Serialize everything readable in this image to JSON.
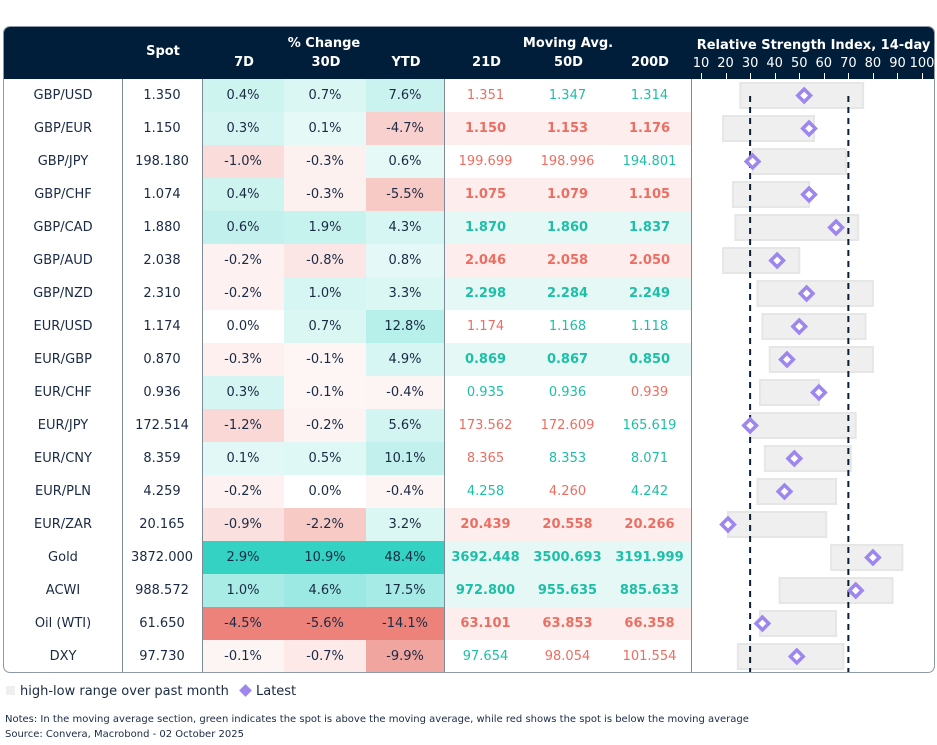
{
  "header": {
    "spot": "Spot",
    "pct_change": "% Change",
    "d7": "7D",
    "d30": "30D",
    "ytd": "YTD",
    "moving_avg": "Moving Avg.",
    "ma21": "21D",
    "ma50": "50D",
    "ma200": "200D",
    "rsi_title": "Relative Strength Index, 14-day",
    "rsi_ticks": [
      "10",
      "20",
      "30",
      "40",
      "50",
      "60",
      "70",
      "80",
      "90",
      "100"
    ]
  },
  "colors": {
    "green": "#1dbfa6",
    "red": "#ec6e62",
    "header_bg": "#001e3a",
    "diamond": "#9d86ee",
    "range": "#efefef"
  },
  "rows": [
    {
      "name": "GBP/USD",
      "spot": "1.350",
      "d7": "0.4%",
      "d30": "0.7%",
      "ytd": "7.6%",
      "ma": [
        "1.351",
        "1.347",
        "1.314"
      ],
      "ma_colors": [
        "red",
        "green",
        "green"
      ],
      "bold": false,
      "rsi": {
        "low": 26,
        "high": 76,
        "latest": 52
      }
    },
    {
      "name": "GBP/EUR",
      "spot": "1.150",
      "d7": "0.3%",
      "d30": "0.1%",
      "ytd": "-4.7%",
      "ma": [
        "1.150",
        "1.153",
        "1.176"
      ],
      "ma_colors": [
        "red",
        "red",
        "red"
      ],
      "bold": true,
      "rsi": {
        "low": 19,
        "high": 56,
        "latest": 54
      }
    },
    {
      "name": "GBP/JPY",
      "spot": "198.180",
      "d7": "-1.0%",
      "d30": "-0.3%",
      "ytd": "0.6%",
      "ma": [
        "199.699",
        "198.996",
        "194.801"
      ],
      "ma_colors": [
        "red",
        "red",
        "green"
      ],
      "bold": false,
      "rsi": {
        "low": 31,
        "high": 69,
        "latest": 31
      }
    },
    {
      "name": "GBP/CHF",
      "spot": "1.074",
      "d7": "0.4%",
      "d30": "-0.3%",
      "ytd": "-5.5%",
      "ma": [
        "1.075",
        "1.079",
        "1.105"
      ],
      "ma_colors": [
        "red",
        "red",
        "red"
      ],
      "bold": true,
      "rsi": {
        "low": 23,
        "high": 54,
        "latest": 54
      }
    },
    {
      "name": "GBP/CAD",
      "spot": "1.880",
      "d7": "0.6%",
      "d30": "1.9%",
      "ytd": "4.3%",
      "ma": [
        "1.870",
        "1.860",
        "1.837"
      ],
      "ma_colors": [
        "green",
        "green",
        "green"
      ],
      "bold": true,
      "rsi": {
        "low": 24,
        "high": 74,
        "latest": 65
      }
    },
    {
      "name": "GBP/AUD",
      "spot": "2.038",
      "d7": "-0.2%",
      "d30": "-0.8%",
      "ytd": "0.8%",
      "ma": [
        "2.046",
        "2.058",
        "2.050"
      ],
      "ma_colors": [
        "red",
        "red",
        "red"
      ],
      "bold": true,
      "rsi": {
        "low": 19,
        "high": 50,
        "latest": 41
      }
    },
    {
      "name": "GBP/NZD",
      "spot": "2.310",
      "d7": "-0.2%",
      "d30": "1.0%",
      "ytd": "3.3%",
      "ma": [
        "2.298",
        "2.284",
        "2.249"
      ],
      "ma_colors": [
        "green",
        "green",
        "green"
      ],
      "bold": true,
      "rsi": {
        "low": 33,
        "high": 80,
        "latest": 53
      }
    },
    {
      "name": "EUR/USD",
      "spot": "1.174",
      "d7": "0.0%",
      "d30": "0.7%",
      "ytd": "12.8%",
      "ma": [
        "1.174",
        "1.168",
        "1.118"
      ],
      "ma_colors": [
        "red",
        "green",
        "green"
      ],
      "bold": false,
      "rsi": {
        "low": 35,
        "high": 77,
        "latest": 50
      }
    },
    {
      "name": "EUR/GBP",
      "spot": "0.870",
      "d7": "-0.3%",
      "d30": "-0.1%",
      "ytd": "4.9%",
      "ma": [
        "0.869",
        "0.867",
        "0.850"
      ],
      "ma_colors": [
        "green",
        "green",
        "green"
      ],
      "bold": true,
      "rsi": {
        "low": 38,
        "high": 80,
        "latest": 45
      }
    },
    {
      "name": "EUR/CHF",
      "spot": "0.936",
      "d7": "0.3%",
      "d30": "-0.1%",
      "ytd": "-0.4%",
      "ma": [
        "0.935",
        "0.936",
        "0.939"
      ],
      "ma_colors": [
        "green",
        "green",
        "red"
      ],
      "bold": false,
      "rsi": {
        "low": 34,
        "high": 58,
        "latest": 58
      }
    },
    {
      "name": "EUR/JPY",
      "spot": "172.514",
      "d7": "-1.2%",
      "d30": "-0.2%",
      "ytd": "5.6%",
      "ma": [
        "173.562",
        "172.609",
        "165.619"
      ],
      "ma_colors": [
        "red",
        "red",
        "green"
      ],
      "bold": false,
      "rsi": {
        "low": 30,
        "high": 73,
        "latest": 30
      }
    },
    {
      "name": "EUR/CNY",
      "spot": "8.359",
      "d7": "0.1%",
      "d30": "0.5%",
      "ytd": "10.1%",
      "ma": [
        "8.365",
        "8.353",
        "8.071"
      ],
      "ma_colors": [
        "red",
        "green",
        "green"
      ],
      "bold": false,
      "rsi": {
        "low": 36,
        "high": 71,
        "latest": 48
      }
    },
    {
      "name": "EUR/PLN",
      "spot": "4.259",
      "d7": "-0.2%",
      "d30": "0.0%",
      "ytd": "-0.4%",
      "ma": [
        "4.258",
        "4.260",
        "4.242"
      ],
      "ma_colors": [
        "green",
        "red",
        "green"
      ],
      "bold": false,
      "rsi": {
        "low": 33,
        "high": 65,
        "latest": 44
      }
    },
    {
      "name": "EUR/ZAR",
      "spot": "20.165",
      "d7": "-0.9%",
      "d30": "-2.2%",
      "ytd": "3.2%",
      "ma": [
        "20.439",
        "20.558",
        "20.266"
      ],
      "ma_colors": [
        "red",
        "red",
        "red"
      ],
      "bold": true,
      "rsi": {
        "low": 21,
        "high": 61,
        "latest": 21
      }
    },
    {
      "name": "Gold",
      "spot": "3872.000",
      "d7": "2.9%",
      "d30": "10.9%",
      "ytd": "48.4%",
      "ma": [
        "3692.448",
        "3500.693",
        "3191.999"
      ],
      "ma_colors": [
        "green",
        "green",
        "green"
      ],
      "bold": true,
      "rsi": {
        "low": 63,
        "high": 92,
        "latest": 80
      }
    },
    {
      "name": "ACWI",
      "spot": "988.572",
      "d7": "1.0%",
      "d30": "4.6%",
      "ytd": "17.5%",
      "ma": [
        "972.800",
        "955.635",
        "885.633"
      ],
      "ma_colors": [
        "green",
        "green",
        "green"
      ],
      "bold": true,
      "rsi": {
        "low": 42,
        "high": 88,
        "latest": 73
      }
    },
    {
      "name": "Oil (WTI)",
      "spot": "61.650",
      "d7": "-4.5%",
      "d30": "-5.6%",
      "ytd": "-14.1%",
      "ma": [
        "63.101",
        "63.853",
        "66.358"
      ],
      "ma_colors": [
        "red",
        "red",
        "red"
      ],
      "bold": true,
      "rsi": {
        "low": 34,
        "high": 65,
        "latest": 35
      }
    },
    {
      "name": "DXY",
      "spot": "97.730",
      "d7": "-0.1%",
      "d30": "-0.7%",
      "ytd": "-9.9%",
      "ma": [
        "97.654",
        "98.054",
        "101.554"
      ],
      "ma_colors": [
        "green",
        "red",
        "red"
      ],
      "bold": false,
      "rsi": {
        "low": 25,
        "high": 68,
        "latest": 49
      }
    }
  ],
  "rsi_reference_lines": [
    30,
    70
  ],
  "legend": {
    "range": "high-low range over past month",
    "latest": "Latest"
  },
  "notes": {
    "line1": "Notes: In the moving average section, green indicates the spot is above the moving average, while red shows the spot is below the moving average",
    "line2": "Source: Convera, Macrobond - 02 October 2025"
  }
}
